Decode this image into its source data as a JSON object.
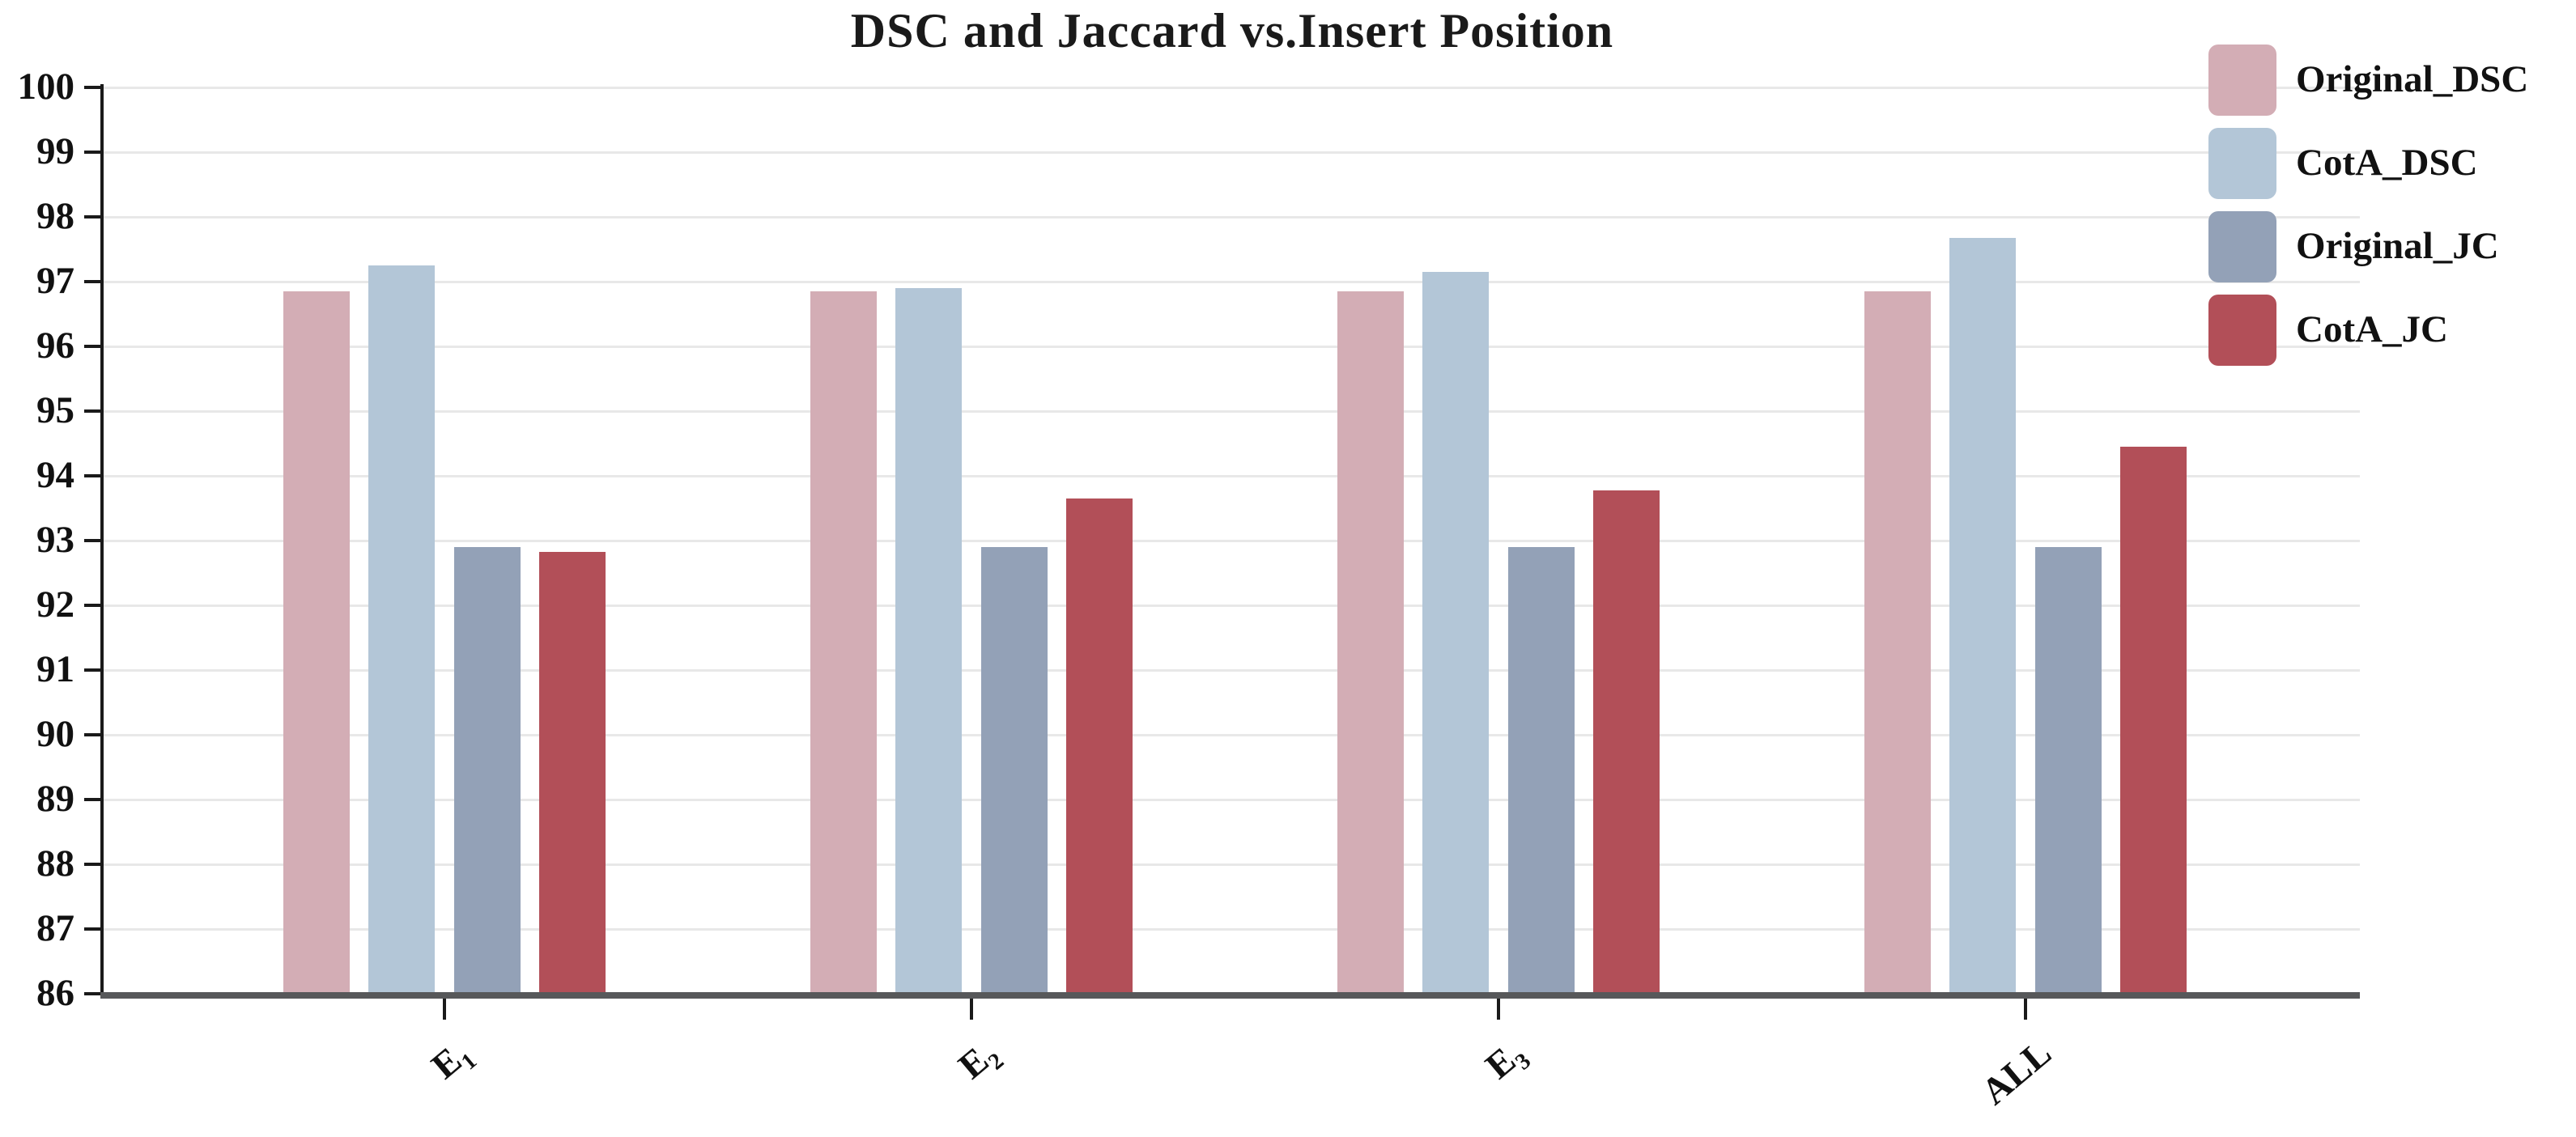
{
  "title": "DSC and Jaccard vs.Insert Position",
  "chart_data": {
    "type": "bar",
    "title": "DSC and Jaccard vs.Insert Position",
    "categories": [
      "E1",
      "E2",
      "E3",
      "ALL"
    ],
    "category_display": [
      {
        "base": "E",
        "sub": "1"
      },
      {
        "base": "E",
        "sub": "2"
      },
      {
        "base": "E",
        "sub": "3"
      },
      {
        "base": "ALL",
        "sub": ""
      }
    ],
    "series": [
      {
        "name": "Original_DSC",
        "color": "#d3adb5",
        "values": [
          96.85,
          96.85,
          96.85,
          96.85
        ]
      },
      {
        "name": "CotA_DSC",
        "color": "#b3c6d7",
        "values": [
          97.25,
          96.9,
          97.15,
          97.68
        ]
      },
      {
        "name": "Original_JC",
        "color": "#93a1b7",
        "values": [
          92.9,
          92.9,
          92.9,
          92.9
        ]
      },
      {
        "name": "CotA_JC",
        "color": "#b24f58",
        "values": [
          92.83,
          93.65,
          93.77,
          94.45
        ]
      }
    ],
    "xlabel": "",
    "ylabel": "",
    "ylim": [
      86,
      100
    ],
    "ytick_step": 1,
    "yticks": [
      86,
      87,
      88,
      89,
      90,
      91,
      92,
      93,
      94,
      95,
      96,
      97,
      98,
      99,
      100
    ],
    "grid": true,
    "legend_position": "top-right",
    "colors": {
      "gridline": "#e8e8e8",
      "x_axis": "#57585a",
      "y_axis": "#1a1a1a",
      "text": "#111111",
      "background": "#ffffff"
    }
  }
}
